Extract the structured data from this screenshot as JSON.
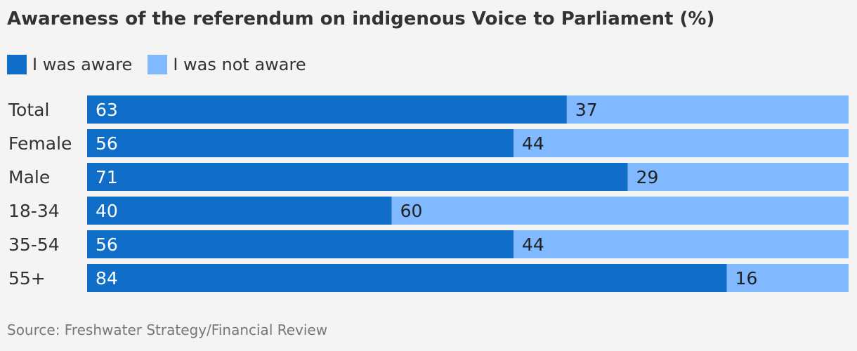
{
  "title": "Awareness of the referendum on indigenous Voice to Parliament (%)",
  "source": "Source: Freshwater Strategy/Financial Review",
  "colors": {
    "aware": "#116ec8",
    "not_aware": "#80b9ff"
  },
  "chart_data": {
    "type": "bar",
    "orientation": "horizontal",
    "stacked": true,
    "title": "Awareness of the referendum on indigenous Voice to Parliament (%)",
    "categories": [
      "Total",
      "Female",
      "Male",
      "18-34",
      "35-54",
      "55+"
    ],
    "series": [
      {
        "name": "I was aware",
        "values": [
          63,
          56,
          71,
          40,
          56,
          84
        ]
      },
      {
        "name": "I was not aware",
        "values": [
          37,
          44,
          29,
          60,
          44,
          16
        ]
      }
    ],
    "xlim": [
      0,
      100
    ],
    "grid": false,
    "legend": "top-left"
  }
}
